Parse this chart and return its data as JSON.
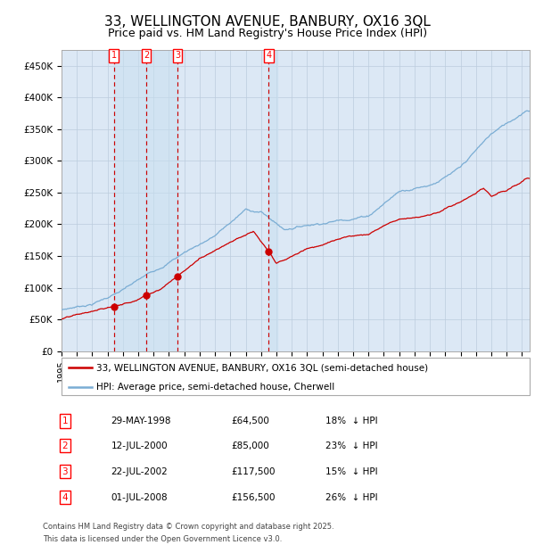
{
  "title": "33, WELLINGTON AVENUE, BANBURY, OX16 3QL",
  "subtitle": "Price paid vs. HM Land Registry's House Price Index (HPI)",
  "ylim": [
    0,
    475000
  ],
  "yticks": [
    0,
    50000,
    100000,
    150000,
    200000,
    250000,
    300000,
    350000,
    400000,
    450000
  ],
  "ytick_labels": [
    "£0",
    "£50K",
    "£100K",
    "£150K",
    "£200K",
    "£250K",
    "£300K",
    "£350K",
    "£400K",
    "£450K"
  ],
  "background_color": "#ffffff",
  "plot_bg_color": "#dce8f5",
  "grid_color": "#bbccdd",
  "hpi_line_color": "#7aadd4",
  "price_line_color": "#cc0000",
  "vline_color": "#cc0000",
  "sale_marker_color": "#cc0000",
  "title_fontsize": 11,
  "subtitle_fontsize": 9,
  "tick_fontsize": 7.5,
  "legend_fontsize": 7.5,
  "table_fontsize": 7.5,
  "footer_fontsize": 6,
  "sales": [
    {
      "label": "1",
      "date_num": 1998.41,
      "price": 64500,
      "date_str": "29-MAY-1998",
      "pct": "18%",
      "dir": "↓"
    },
    {
      "label": "2",
      "date_num": 2000.53,
      "price": 85000,
      "date_str": "12-JUL-2000",
      "pct": "23%",
      "dir": "↓"
    },
    {
      "label": "3",
      "date_num": 2002.55,
      "price": 117500,
      "date_str": "22-JUL-2002",
      "pct": "15%",
      "dir": "↓"
    },
    {
      "label": "4",
      "date_num": 2008.5,
      "price": 156500,
      "date_str": "01-JUL-2008",
      "pct": "26%",
      "dir": "↓"
    }
  ],
  "footer_line1": "Contains HM Land Registry data © Crown copyright and database right 2025.",
  "footer_line2": "This data is licensed under the Open Government Licence v3.0.",
  "legend_price_label": "33, WELLINGTON AVENUE, BANBURY, OX16 3QL (semi-detached house)",
  "legend_hpi_label": "HPI: Average price, semi-detached house, Cherwell",
  "xlim_start": 1995.0,
  "xlim_end": 2025.5,
  "hpi_anchors_t": [
    1995.0,
    1997.0,
    1999.0,
    2001.0,
    2003.0,
    2005.0,
    2007.0,
    2008.0,
    2009.5,
    2011.0,
    2013.0,
    2015.0,
    2017.0,
    2019.0,
    2021.0,
    2023.0,
    2024.5,
    2025.3
  ],
  "hpi_anchors_v": [
    57000,
    68000,
    90000,
    118000,
    150000,
    178000,
    218000,
    215000,
    188000,
    197000,
    207000,
    218000,
    258000,
    272000,
    297000,
    348000,
    372000,
    388000
  ],
  "price_anchors_t": [
    1995.0,
    1997.0,
    1998.41,
    1999.5,
    2000.53,
    2001.5,
    2002.55,
    2004.0,
    2006.0,
    2007.5,
    2008.5,
    2009.0,
    2009.8,
    2011.0,
    2013.0,
    2015.0,
    2017.0,
    2019.0,
    2021.0,
    2022.5,
    2023.0,
    2024.0,
    2025.3
  ],
  "price_anchors_v": [
    47000,
    57000,
    64500,
    72000,
    85000,
    97000,
    117500,
    145000,
    175000,
    191000,
    156500,
    137000,
    145000,
    160000,
    175000,
    185000,
    210000,
    220000,
    240000,
    260000,
    248000,
    255000,
    273000
  ]
}
